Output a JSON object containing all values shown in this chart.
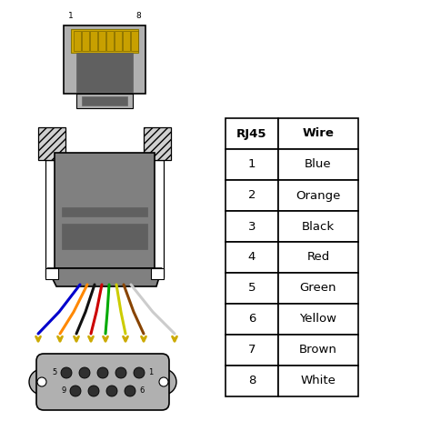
{
  "bg_color": "#ffffff",
  "table_data": [
    [
      "RJ45",
      "Wire"
    ],
    [
      "1",
      "Blue"
    ],
    [
      "2",
      "Orange"
    ],
    [
      "3",
      "Black"
    ],
    [
      "4",
      "Red"
    ],
    [
      "5",
      "Green"
    ],
    [
      "6",
      "Yellow"
    ],
    [
      "7",
      "Brown"
    ],
    [
      "8",
      "White"
    ]
  ],
  "wire_colors": [
    "#0000cc",
    "#ff8800",
    "#111111",
    "#cc0000",
    "#00aa00",
    "#cccc00",
    "#884400",
    "#cccccc"
  ],
  "connector_gray": "#808080",
  "connector_light": "#b0b0b0",
  "connector_dark": "#606060",
  "gold": "#ccaa00",
  "rj45_label_1": "1",
  "rj45_label_8": "8",
  "db9_label_5": "5",
  "db9_label_1": "1",
  "db9_label_9": "9",
  "db9_label_6": "6"
}
